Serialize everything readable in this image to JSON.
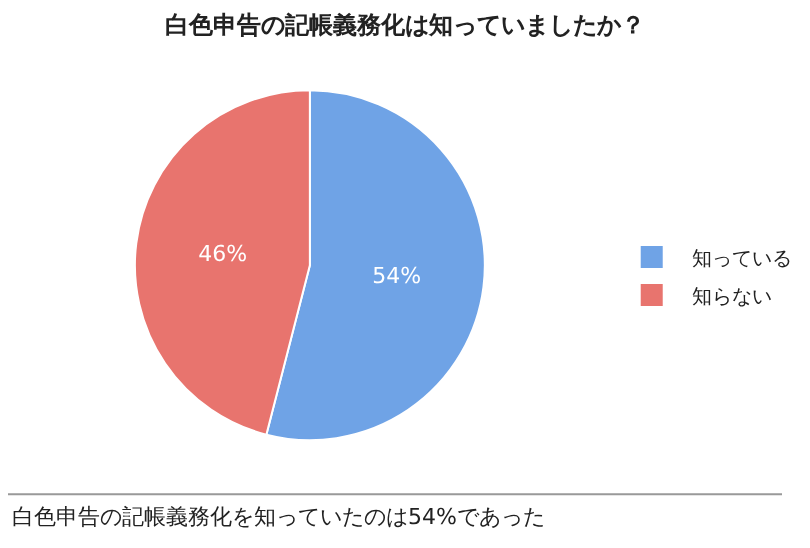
{
  "chart_data": {
    "type": "pie",
    "title": "白色申告の記帳義務化は知っていましたか？",
    "categories": [
      "知っている",
      "知らない"
    ],
    "values": [
      54,
      46
    ],
    "value_labels": [
      "54%",
      "46%"
    ],
    "colors": [
      "#6fa3e6",
      "#e8746e"
    ],
    "legend": "right",
    "annotations": [
      "白色申告の記帳義務化を知っていたのは54%であった"
    ]
  }
}
